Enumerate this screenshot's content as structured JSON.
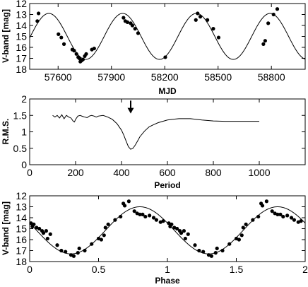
{
  "chart_data": [
    {
      "id": "lightcurve",
      "type": "scatter",
      "xlabel": "MJD",
      "ylabel": "V-band [mag]",
      "xlim": [
        57440,
        58990
      ],
      "ylim": [
        18,
        12
      ],
      "y_inverted": true,
      "xticks": [
        57600,
        57900,
        58200,
        58500,
        58800
      ],
      "xtick_labels": [
        "57600",
        "57900",
        "58200",
        "58500",
        "58800"
      ],
      "yticks": [
        12,
        13,
        14,
        15,
        16,
        17,
        18
      ],
      "ytick_labels": [
        "12",
        "13",
        "14",
        "15",
        "16",
        "17",
        "18"
      ],
      "grid": false,
      "model": {
        "type": "sinusoid",
        "period_days": 415,
        "peak_mjd": 57548,
        "mean_mag": 15.0,
        "amplitude_mag": 2.1,
        "x_range": [
          57440,
          58990
        ]
      },
      "points": [
        {
          "x": 57483,
          "y": 13.6
        },
        {
          "x": 57490,
          "y": 12.9
        },
        {
          "x": 57602,
          "y": 14.8
        },
        {
          "x": 57618,
          "y": 15.1
        },
        {
          "x": 57633,
          "y": 15.7
        },
        {
          "x": 57680,
          "y": 16.2
        },
        {
          "x": 57690,
          "y": 16.3
        },
        {
          "x": 57703,
          "y": 16.6
        },
        {
          "x": 57713,
          "y": 16.9
        },
        {
          "x": 57720,
          "y": 17.0
        },
        {
          "x": 57725,
          "y": 17.3
        },
        {
          "x": 57732,
          "y": 17.2
        },
        {
          "x": 57740,
          "y": 17.1
        },
        {
          "x": 57750,
          "y": 16.8
        },
        {
          "x": 57758,
          "y": 16.6
        },
        {
          "x": 57790,
          "y": 16.2
        },
        {
          "x": 57803,
          "y": 16.1
        },
        {
          "x": 57968,
          "y": 13.3
        },
        {
          "x": 57978,
          "y": 13.6
        },
        {
          "x": 57990,
          "y": 13.7
        },
        {
          "x": 58008,
          "y": 13.8
        },
        {
          "x": 58018,
          "y": 14.0
        },
        {
          "x": 58033,
          "y": 14.3
        },
        {
          "x": 58050,
          "y": 14.7
        },
        {
          "x": 58203,
          "y": 16.9
        },
        {
          "x": 58375,
          "y": 13.5
        },
        {
          "x": 58385,
          "y": 12.9
        },
        {
          "x": 58400,
          "y": 13.2
        },
        {
          "x": 58440,
          "y": 13.5
        },
        {
          "x": 58473,
          "y": 14.3
        },
        {
          "x": 58503,
          "y": 15.1
        },
        {
          "x": 58755,
          "y": 15.7
        },
        {
          "x": 58765,
          "y": 15.4
        },
        {
          "x": 58782,
          "y": 13.8
        },
        {
          "x": 58812,
          "y": 13.0
        },
        {
          "x": 58833,
          "y": 12.5
        }
      ]
    },
    {
      "id": "periodogram",
      "type": "line",
      "xlabel": "Period",
      "ylabel": "R.M.S.",
      "xlim": [
        0,
        1200
      ],
      "ylim": [
        0,
        2
      ],
      "xticks": [
        0,
        200,
        400,
        600,
        800,
        1000
      ],
      "xtick_labels": [
        "0",
        "200",
        "400",
        "600",
        "800",
        "1000"
      ],
      "yticks": [
        0,
        0.5,
        1,
        1.5,
        2
      ],
      "ytick_labels": [
        "0",
        "0.5",
        "1",
        "1.5",
        "2"
      ],
      "grid": false,
      "annotation": {
        "type": "arrow",
        "x": 440,
        "y_from": 1.95,
        "y_to": 1.6
      },
      "series": [
        {
          "x": [
            100,
            110,
            120,
            130,
            140,
            150,
            160,
            170,
            180,
            190,
            195,
            200,
            210,
            220,
            230,
            240,
            250,
            260,
            270,
            280,
            290,
            300,
            320,
            340,
            360,
            380,
            400,
            410,
            420,
            430,
            440,
            450,
            460,
            470,
            480,
            500,
            520,
            540,
            560,
            580,
            600,
            620,
            650,
            700,
            750,
            800,
            850,
            900,
            950,
            1000
          ],
          "y": [
            1.5,
            1.45,
            1.5,
            1.42,
            1.52,
            1.4,
            1.5,
            1.45,
            1.42,
            1.32,
            1.3,
            1.38,
            1.48,
            1.5,
            1.47,
            1.45,
            1.43,
            1.48,
            1.5,
            1.48,
            1.45,
            1.48,
            1.5,
            1.45,
            1.38,
            1.25,
            1.05,
            0.9,
            0.72,
            0.55,
            0.47,
            0.5,
            0.6,
            0.72,
            0.85,
            1.02,
            1.15,
            1.22,
            1.28,
            1.32,
            1.36,
            1.38,
            1.4,
            1.4,
            1.36,
            1.33,
            1.32,
            1.32,
            1.32,
            1.32
          ]
        }
      ]
    },
    {
      "id": "phased",
      "type": "scatter",
      "xlabel": "Phase",
      "ylabel": "V-band [mag]",
      "xlim": [
        0,
        2
      ],
      "ylim": [
        18,
        12
      ],
      "y_inverted": true,
      "xticks": [
        0,
        0.5,
        1,
        1.5,
        2
      ],
      "xtick_labels": [
        "0",
        "0.5",
        "1",
        "1.5",
        "2"
      ],
      "yticks": [
        12,
        13,
        14,
        15,
        16,
        17,
        18
      ],
      "ytick_labels": [
        "12",
        "13",
        "14",
        "15",
        "16",
        "17",
        "18"
      ],
      "grid": false,
      "model": {
        "type": "sinusoid",
        "period_phase": 1,
        "peak_phase": 0.8,
        "mean_mag": 15.15,
        "amplitude_mag": 2.15,
        "x_range": [
          0,
          2
        ]
      },
      "points": [
        {
          "x": 0.01,
          "y": 14.5
        },
        {
          "x": 0.02,
          "y": 14.8
        },
        {
          "x": 0.03,
          "y": 14.6
        },
        {
          "x": 0.05,
          "y": 14.9
        },
        {
          "x": 0.07,
          "y": 15.0
        },
        {
          "x": 0.09,
          "y": 15.2
        },
        {
          "x": 0.1,
          "y": 15.4
        },
        {
          "x": 0.12,
          "y": 15.2
        },
        {
          "x": 0.13,
          "y": 15.9
        },
        {
          "x": 0.15,
          "y": 15.5
        },
        {
          "x": 0.2,
          "y": 16.5
        },
        {
          "x": 0.23,
          "y": 17.0
        },
        {
          "x": 0.26,
          "y": 17.1
        },
        {
          "x": 0.3,
          "y": 17.4
        },
        {
          "x": 0.32,
          "y": 17.5
        },
        {
          "x": 0.35,
          "y": 17.2
        },
        {
          "x": 0.36,
          "y": 16.8
        },
        {
          "x": 0.4,
          "y": 17.0
        },
        {
          "x": 0.45,
          "y": 16.4
        },
        {
          "x": 0.5,
          "y": 15.9
        },
        {
          "x": 0.52,
          "y": 16.0
        },
        {
          "x": 0.54,
          "y": 15.6
        },
        {
          "x": 0.55,
          "y": 14.9
        },
        {
          "x": 0.57,
          "y": 14.6
        },
        {
          "x": 0.62,
          "y": 14.2
        },
        {
          "x": 0.66,
          "y": 13.9
        },
        {
          "x": 0.68,
          "y": 12.7
        },
        {
          "x": 0.69,
          "y": 12.9
        },
        {
          "x": 0.72,
          "y": 12.5
        },
        {
          "x": 0.76,
          "y": 13.4
        },
        {
          "x": 0.78,
          "y": 13.6
        },
        {
          "x": 0.8,
          "y": 13.7
        },
        {
          "x": 0.82,
          "y": 13.7
        },
        {
          "x": 0.84,
          "y": 13.9
        },
        {
          "x": 0.87,
          "y": 13.8
        },
        {
          "x": 0.9,
          "y": 14.0
        },
        {
          "x": 0.92,
          "y": 14.2
        },
        {
          "x": 0.95,
          "y": 14.4
        },
        {
          "x": 0.97,
          "y": 14.3
        },
        {
          "x": 1.01,
          "y": 14.5
        },
        {
          "x": 1.02,
          "y": 14.8
        },
        {
          "x": 1.03,
          "y": 14.6
        },
        {
          "x": 1.05,
          "y": 14.9
        },
        {
          "x": 1.07,
          "y": 15.0
        },
        {
          "x": 1.09,
          "y": 15.2
        },
        {
          "x": 1.1,
          "y": 15.4
        },
        {
          "x": 1.12,
          "y": 15.2
        },
        {
          "x": 1.13,
          "y": 15.9
        },
        {
          "x": 1.15,
          "y": 15.5
        },
        {
          "x": 1.2,
          "y": 16.5
        },
        {
          "x": 1.23,
          "y": 17.0
        },
        {
          "x": 1.26,
          "y": 17.1
        },
        {
          "x": 1.3,
          "y": 17.4
        },
        {
          "x": 1.32,
          "y": 17.5
        },
        {
          "x": 1.35,
          "y": 17.2
        },
        {
          "x": 1.36,
          "y": 16.8
        },
        {
          "x": 1.4,
          "y": 17.0
        },
        {
          "x": 1.45,
          "y": 16.4
        },
        {
          "x": 1.5,
          "y": 15.9
        },
        {
          "x": 1.52,
          "y": 16.0
        },
        {
          "x": 1.54,
          "y": 15.6
        },
        {
          "x": 1.55,
          "y": 14.9
        },
        {
          "x": 1.57,
          "y": 14.6
        },
        {
          "x": 1.62,
          "y": 14.2
        },
        {
          "x": 1.66,
          "y": 13.9
        },
        {
          "x": 1.68,
          "y": 12.7
        },
        {
          "x": 1.69,
          "y": 12.9
        },
        {
          "x": 1.72,
          "y": 12.5
        },
        {
          "x": 1.76,
          "y": 13.4
        },
        {
          "x": 1.78,
          "y": 13.6
        },
        {
          "x": 1.8,
          "y": 13.7
        },
        {
          "x": 1.82,
          "y": 13.7
        },
        {
          "x": 1.84,
          "y": 13.9
        },
        {
          "x": 1.87,
          "y": 13.8
        },
        {
          "x": 1.9,
          "y": 14.0
        },
        {
          "x": 1.92,
          "y": 14.2
        },
        {
          "x": 1.95,
          "y": 14.4
        },
        {
          "x": 1.97,
          "y": 14.3
        }
      ]
    }
  ]
}
